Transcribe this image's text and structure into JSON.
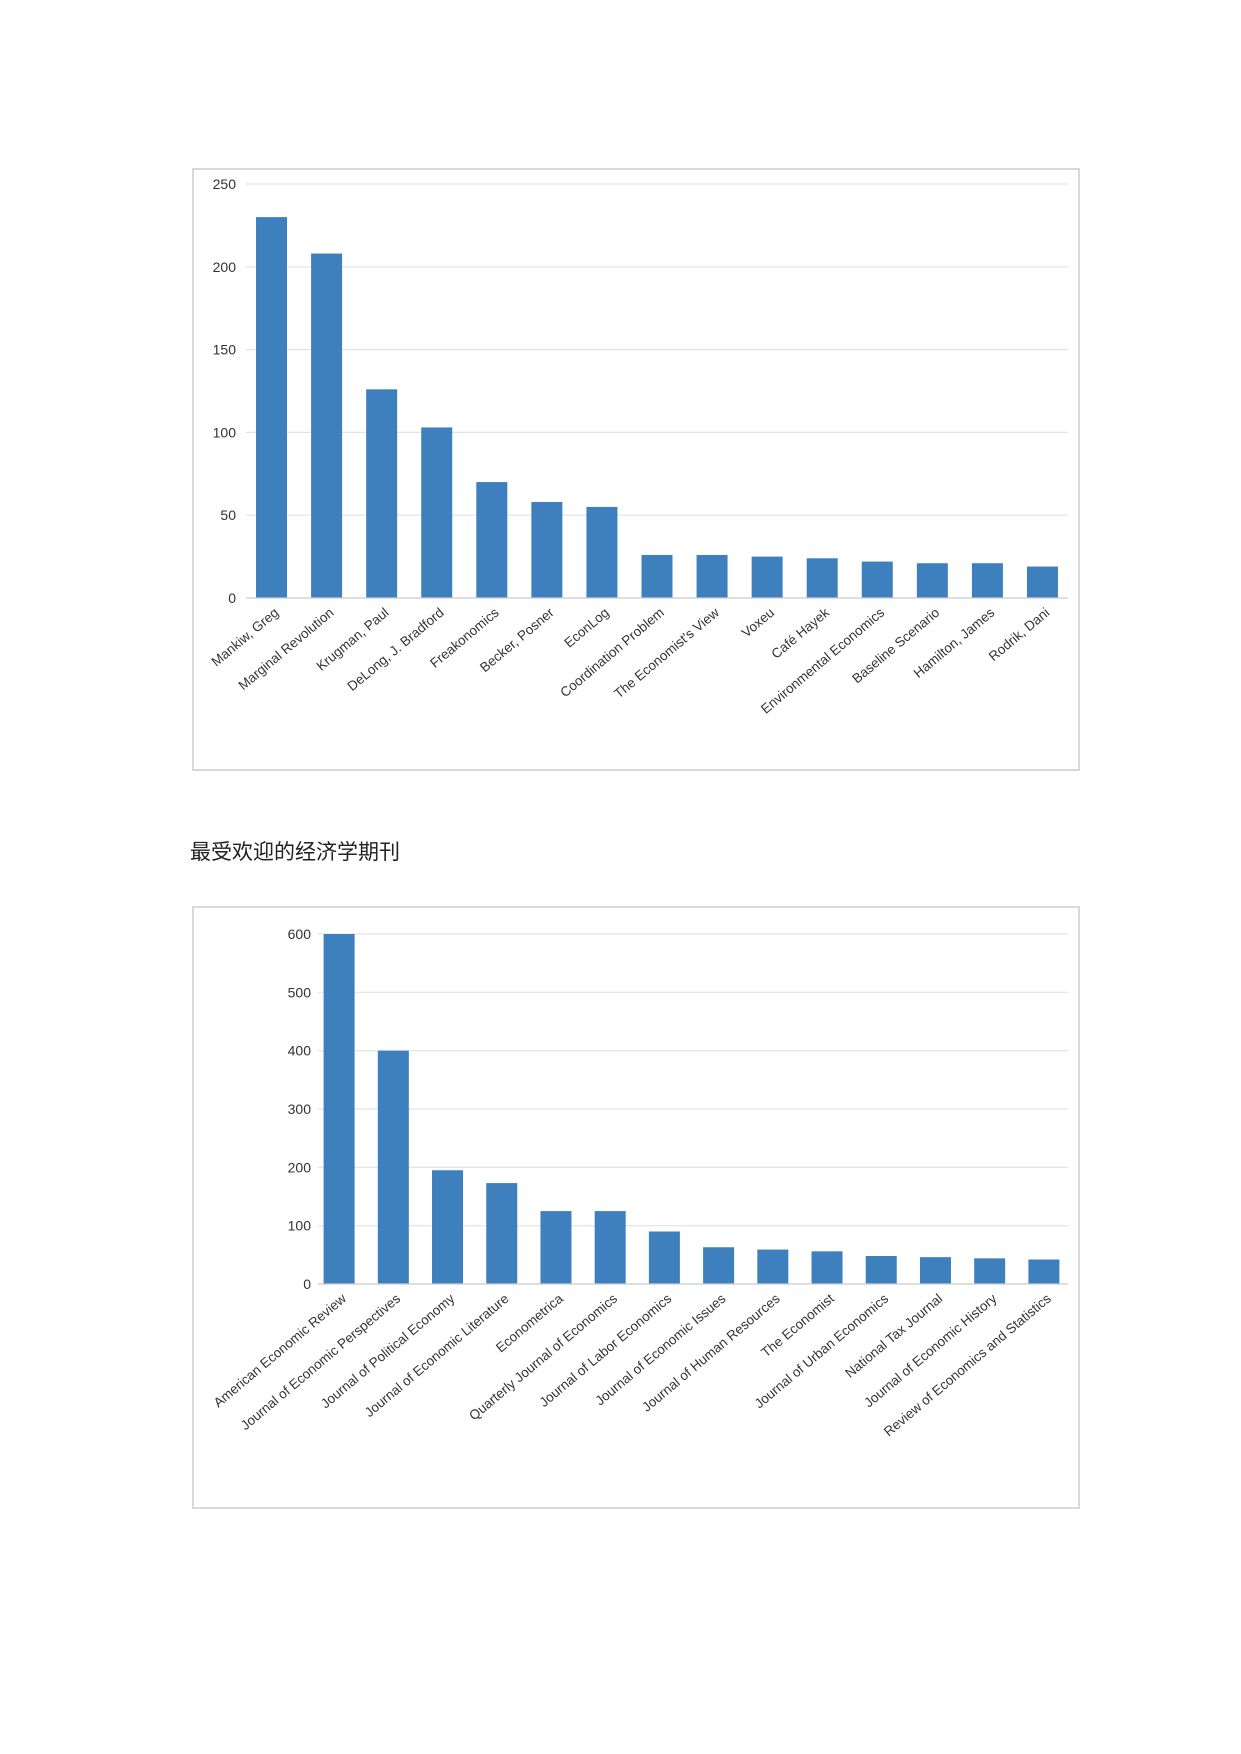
{
  "caption": "最受欢迎的经济学期刊",
  "colors": {
    "bar": "#3e7fbd",
    "grid": "#e3e3e3",
    "text": "#333333",
    "frame": "#d9d9d9"
  },
  "chart_data": [
    {
      "type": "bar",
      "categories": [
        "Mankiw, Greg",
        "Marginal Revolution",
        "Krugman, Paul",
        "DeLong, J. Bradford",
        "Freakonomics",
        "Becker, Posner",
        "EconLog",
        "Coordination Problem",
        "The Economist's View",
        "Voxeu",
        "Café Hayek",
        "Environmental Economics",
        "Baseline Scenario",
        "Hamilton, James",
        "Rodrik, Dani"
      ],
      "values": [
        230,
        208,
        126,
        103,
        70,
        58,
        55,
        26,
        26,
        25,
        24,
        22,
        21,
        21,
        19
      ],
      "yticks": [
        0,
        50,
        100,
        150,
        200,
        250
      ],
      "ylim": [
        0,
        250
      ],
      "grid": true
    },
    {
      "type": "bar",
      "categories": [
        "American Economic Review",
        "Journal of Economic Perspectives",
        "Journal of Political Economy",
        "Journal of Economic Literature",
        "Econometrica",
        "Quarterly Journal of Economics",
        "Journal of Labor Economics",
        "Journal of Economic Issues",
        "Journal of Human Resources",
        "The Economist",
        "Journal of Urban Economics",
        "National Tax Journal",
        "Journal of Economic History",
        "Review of Economics and Statistics"
      ],
      "values": [
        600,
        400,
        195,
        173,
        125,
        125,
        90,
        63,
        59,
        56,
        48,
        46,
        44,
        42
      ],
      "yticks": [
        0,
        100,
        200,
        300,
        400,
        500,
        600
      ],
      "ylim": [
        0,
        600
      ],
      "grid": true
    }
  ]
}
